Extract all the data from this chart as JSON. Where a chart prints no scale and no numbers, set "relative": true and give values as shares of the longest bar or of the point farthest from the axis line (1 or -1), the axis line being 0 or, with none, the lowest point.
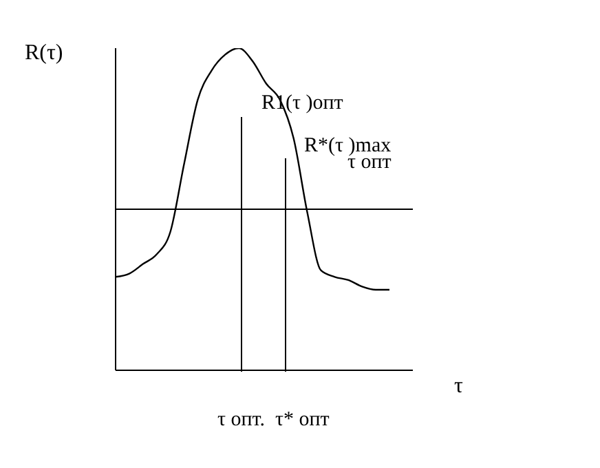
{
  "chart_data": {
    "type": "line",
    "relative": true,
    "ylabel": "R(τ)",
    "xlabel": "τ",
    "categories": [
      null,
      null,
      null,
      null,
      null,
      null,
      null,
      null,
      null,
      null,
      null,
      null,
      null,
      null,
      null,
      null,
      null,
      null,
      null,
      null,
      null
    ],
    "series": [
      {
        "color": "#000000",
        "values": [
          0.29,
          0.3,
          0.33,
          0.36,
          0.43,
          0.64,
          0.84,
          0.93,
          0.98,
          1.0,
          0.96,
          0.89,
          0.84,
          0.72,
          0.49,
          0.31,
          0.29,
          0.28,
          0.26,
          0.25,
          0.25
        ]
      }
    ],
    "ref_lines": [
      {
        "axis": "y",
        "value": 0.5,
        "label": "τ опт",
        "color": "#000000"
      }
    ],
    "annotations": [
      "R1(τ )опт",
      "R*(τ )max",
      "τ опт.  τ* опт"
    ],
    "grid": false,
    "legend": false,
    "marker": "none",
    "line_style": "solid",
    "tick_labels": false
  }
}
